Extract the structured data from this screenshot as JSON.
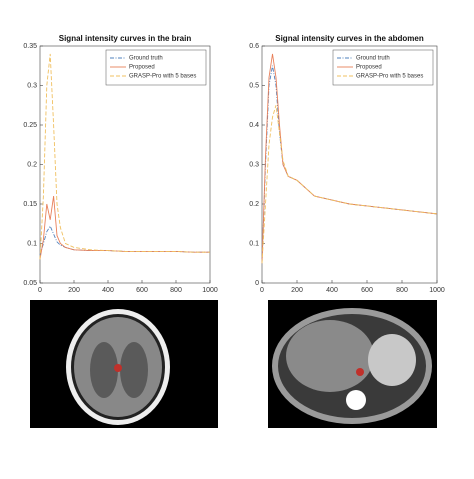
{
  "chart_data": [
    {
      "type": "line",
      "title": "Signal intensity curves in the brain",
      "x": [
        0,
        20,
        40,
        60,
        80,
        100,
        120,
        150,
        200,
        300,
        400,
        500,
        600,
        700,
        800,
        900,
        1000
      ],
      "series": [
        {
          "name": "Ground truth",
          "color": "#4f81bd",
          "linestyle": "dashdot",
          "values": [
            0.085,
            0.1,
            0.115,
            0.122,
            0.112,
            0.102,
            0.098,
            0.095,
            0.092,
            0.091,
            0.091,
            0.09,
            0.09,
            0.09,
            0.09,
            0.089,
            0.089
          ]
        },
        {
          "name": "Proposed",
          "color": "#e8805a",
          "linestyle": "solid",
          "values": [
            0.08,
            0.105,
            0.15,
            0.13,
            0.16,
            0.11,
            0.1,
            0.095,
            0.092,
            0.091,
            0.091,
            0.09,
            0.09,
            0.09,
            0.09,
            0.089,
            0.089
          ]
        },
        {
          "name": "GRASP-Pro with 5 bases",
          "color": "#f0c060",
          "linestyle": "dashed",
          "values": [
            0.08,
            0.16,
            0.3,
            0.34,
            0.25,
            0.15,
            0.12,
            0.1,
            0.095,
            0.092,
            0.091,
            0.09,
            0.09,
            0.09,
            0.09,
            0.089,
            0.089
          ]
        }
      ],
      "xlim": [
        0,
        1000
      ],
      "xticks": [
        0,
        200,
        400,
        600,
        800,
        1000
      ],
      "ylim": [
        0.05,
        0.35
      ],
      "yticks": [
        0.05,
        0.1,
        0.15,
        0.2,
        0.25,
        0.3,
        0.35
      ],
      "legend": "upper right"
    },
    {
      "type": "line",
      "title": "Signal intensity curves in the abdomen",
      "x": [
        0,
        20,
        40,
        60,
        80,
        100,
        120,
        150,
        200,
        300,
        400,
        500,
        600,
        700,
        800,
        900,
        1000
      ],
      "series": [
        {
          "name": "Ground truth",
          "color": "#4f81bd",
          "linestyle": "dashdot",
          "values": [
            0.05,
            0.3,
            0.5,
            0.55,
            0.5,
            0.38,
            0.3,
            0.27,
            0.26,
            0.22,
            0.21,
            0.2,
            0.195,
            0.19,
            0.185,
            0.18,
            0.175
          ]
        },
        {
          "name": "Proposed",
          "color": "#e8805a",
          "linestyle": "solid",
          "values": [
            0.05,
            0.32,
            0.52,
            0.58,
            0.52,
            0.4,
            0.3,
            0.27,
            0.26,
            0.22,
            0.21,
            0.2,
            0.195,
            0.19,
            0.185,
            0.18,
            0.175
          ]
        },
        {
          "name": "GRASP-Pro with 5 bases",
          "color": "#f0c060",
          "linestyle": "dashed",
          "values": [
            0.05,
            0.2,
            0.35,
            0.42,
            0.45,
            0.38,
            0.31,
            0.27,
            0.26,
            0.22,
            0.21,
            0.2,
            0.195,
            0.19,
            0.185,
            0.18,
            0.175
          ]
        }
      ],
      "xlim": [
        0,
        1000
      ],
      "xticks": [
        0,
        200,
        400,
        600,
        800,
        1000
      ],
      "ylim": [
        0,
        0.6
      ],
      "yticks": [
        0,
        0.1,
        0.2,
        0.3,
        0.4,
        0.5,
        0.6
      ],
      "legend": "upper right"
    }
  ]
}
